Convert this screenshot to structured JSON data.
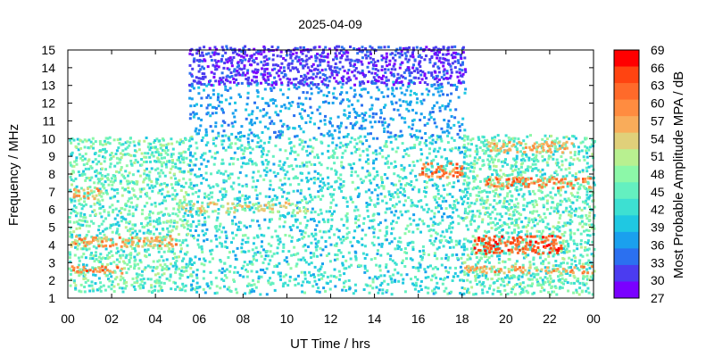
{
  "chart_data": {
    "type": "heatmap",
    "title": "2025-04-09",
    "xlabel": "UT Time / hrs",
    "ylabel": "Frequency / MHz",
    "colorbar_label": "Most Probable Amplitude MPA / dB",
    "xlim": [
      0,
      24
    ],
    "ylim": [
      1,
      15
    ],
    "x_tick_labels": [
      "00",
      "02",
      "04",
      "06",
      "08",
      "10",
      "12",
      "14",
      "16",
      "18",
      "20",
      "22",
      "00"
    ],
    "y_tick_labels": [
      "1",
      "2",
      "3",
      "4",
      "5",
      "6",
      "7",
      "8",
      "9",
      "10",
      "11",
      "12",
      "13",
      "14",
      "15"
    ],
    "colorbar_ticks": [
      "69",
      "66",
      "63",
      "60",
      "57",
      "54",
      "51",
      "48",
      "45",
      "42",
      "39",
      "36",
      "33",
      "30",
      "27"
    ],
    "colorbar_range": [
      27,
      69
    ],
    "colorbar_step": 3,
    "colorbar_colors": [
      "#ff0000",
      "#ff4411",
      "#ff6a2a",
      "#ff8c40",
      "#f9ac5a",
      "#e0d07a",
      "#b8f090",
      "#8cf8a8",
      "#64f0c0",
      "#3de0d2",
      "#1fc8e2",
      "#1aa0ee",
      "#2b70f0",
      "#4b3cf0",
      "#7a00ff"
    ],
    "coverage": {
      "night_max_mhz": 10,
      "day_max_mhz": 15,
      "day_start_ut": 5.5,
      "day_end_ut": 18
    },
    "bands": [
      {
        "x0": 0,
        "x1": 5.5,
        "f0": 1.3,
        "f1": 10,
        "mpa_low": 39,
        "mpa_high": 51,
        "density": 0.45
      },
      {
        "x0": 0,
        "x1": 2.5,
        "f0": 2.4,
        "f1": 2.8,
        "mpa_low": 57,
        "mpa_high": 66,
        "density": 0.6
      },
      {
        "x0": 0,
        "x1": 4.8,
        "f0": 3.9,
        "f1": 4.4,
        "mpa_low": 51,
        "mpa_high": 63,
        "density": 0.6
      },
      {
        "x0": 0,
        "x1": 1.5,
        "f0": 6.6,
        "f1": 7.2,
        "mpa_low": 51,
        "mpa_high": 63,
        "density": 0.5
      },
      {
        "x0": 5.5,
        "x1": 18,
        "f0": 1.2,
        "f1": 10,
        "mpa_low": 36,
        "mpa_high": 48,
        "density": 0.28
      },
      {
        "x0": 5.5,
        "x1": 18,
        "f0": 10,
        "f1": 13,
        "mpa_low": 33,
        "mpa_high": 39,
        "density": 0.25
      },
      {
        "x0": 5.5,
        "x1": 18,
        "f0": 13,
        "f1": 15,
        "mpa_low": 27,
        "mpa_high": 33,
        "density": 0.55
      },
      {
        "x0": 16,
        "x1": 18,
        "f0": 7.8,
        "f1": 8.4,
        "mpa_low": 57,
        "mpa_high": 66,
        "density": 0.5
      },
      {
        "x0": 18,
        "x1": 24,
        "f0": 1.2,
        "f1": 10,
        "mpa_low": 39,
        "mpa_high": 51,
        "density": 0.45
      },
      {
        "x0": 18.5,
        "x1": 22.5,
        "f0": 3.5,
        "f1": 4.4,
        "mpa_low": 60,
        "mpa_high": 69,
        "density": 0.6
      },
      {
        "x0": 19,
        "x1": 24,
        "f0": 7.2,
        "f1": 7.8,
        "mpa_low": 57,
        "mpa_high": 66,
        "density": 0.5
      },
      {
        "x0": 18,
        "x1": 24,
        "f0": 2.4,
        "f1": 2.8,
        "mpa_low": 54,
        "mpa_high": 63,
        "density": 0.5
      },
      {
        "x0": 19,
        "x1": 23,
        "f0": 9.2,
        "f1": 9.6,
        "mpa_low": 54,
        "mpa_high": 60,
        "density": 0.5
      },
      {
        "x0": 5,
        "x1": 11,
        "f0": 5.8,
        "f1": 6.4,
        "mpa_low": 48,
        "mpa_high": 57,
        "density": 0.35
      }
    ]
  }
}
